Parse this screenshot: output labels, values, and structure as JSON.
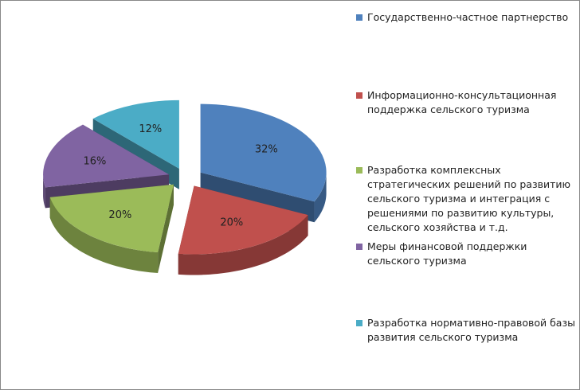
{
  "chart_data": {
    "type": "pie",
    "categories": [
      "Государственно-частное партнерство",
      "Информационно-консультационная поддержка сельского туризма",
      "Разработка комплексных стратегических решений по развитию сельского туризма и интеграция с решениями по развитию культуры, сельского хозяйства и т.д.",
      "Меры финансовой поддержки сельского туризма",
      "Разработка нормативно-правовой базы развития сельского туризма"
    ],
    "values": [
      32,
      20,
      20,
      16,
      12
    ],
    "value_labels": [
      "32%",
      "20%",
      "20%",
      "16%",
      "12%"
    ],
    "colors": [
      "#4f81bd",
      "#c0504d",
      "#9bbb59",
      "#8064a2",
      "#4bacc6"
    ],
    "legend": "right"
  }
}
